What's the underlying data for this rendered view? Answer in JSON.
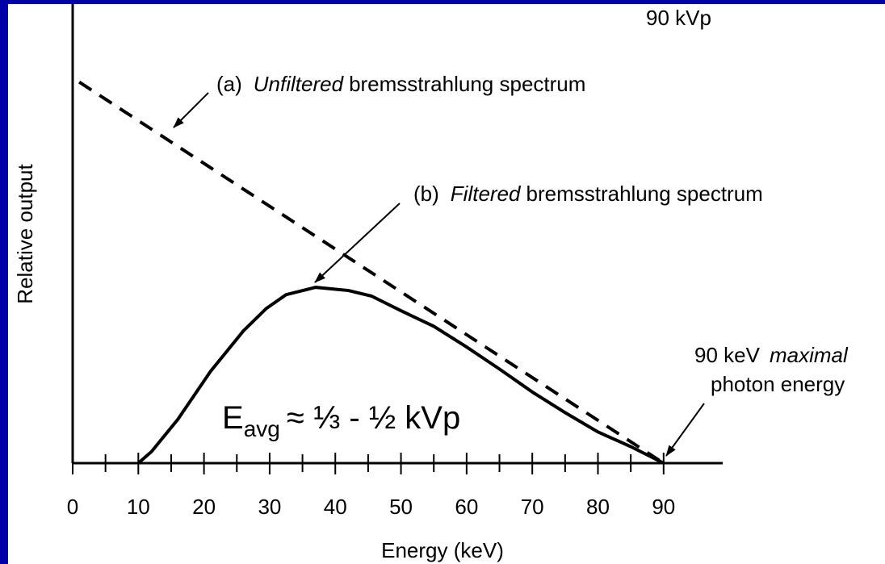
{
  "chart_data": {
    "type": "line",
    "xlabel": "Energy (keV)",
    "ylabel": "Relative output",
    "xlim": [
      0,
      99
    ],
    "ylim": [
      0,
      100
    ],
    "xticks": [
      0,
      10,
      20,
      30,
      40,
      50,
      60,
      70,
      80,
      90
    ],
    "xticks_minor": [
      5,
      15,
      25,
      35,
      45,
      55,
      65,
      75,
      85
    ],
    "series": [
      {
        "name": "Unfiltered",
        "color": "#000000",
        "dashed": true,
        "x": [
          1,
          90
        ],
        "values": [
          83,
          0
        ]
      },
      {
        "name": "Filtered",
        "color": "#000000",
        "dashed": false,
        "x": [
          10,
          12,
          16,
          21,
          26,
          29.5,
          32.5,
          37,
          42,
          45.5,
          50,
          55,
          60,
          65,
          70,
          75,
          80,
          85,
          90
        ],
        "values": [
          0,
          2.5,
          9.5,
          20,
          28.8,
          33.7,
          36.7,
          38.3,
          37.6,
          36.4,
          33.2,
          29.8,
          25.3,
          20.5,
          15.5,
          11,
          6.8,
          3.6,
          0
        ]
      }
    ],
    "annotations": {
      "kvp": "90 kVp",
      "a_prefix": "(a)",
      "a_italic": "Unfiltered",
      "a_rest": "bremsstrahlung spectrum",
      "b_prefix": "(b)",
      "b_italic": "Filtered",
      "b_rest": "bremsstrahlung spectrum",
      "max_line1_a": "90 keV",
      "max_line1_b": "maximal",
      "max_line2": "photon energy",
      "eavg_e": "E",
      "eavg_sub": "avg",
      "eavg_rest": "≈ ⅓ - ½ kVp"
    }
  }
}
